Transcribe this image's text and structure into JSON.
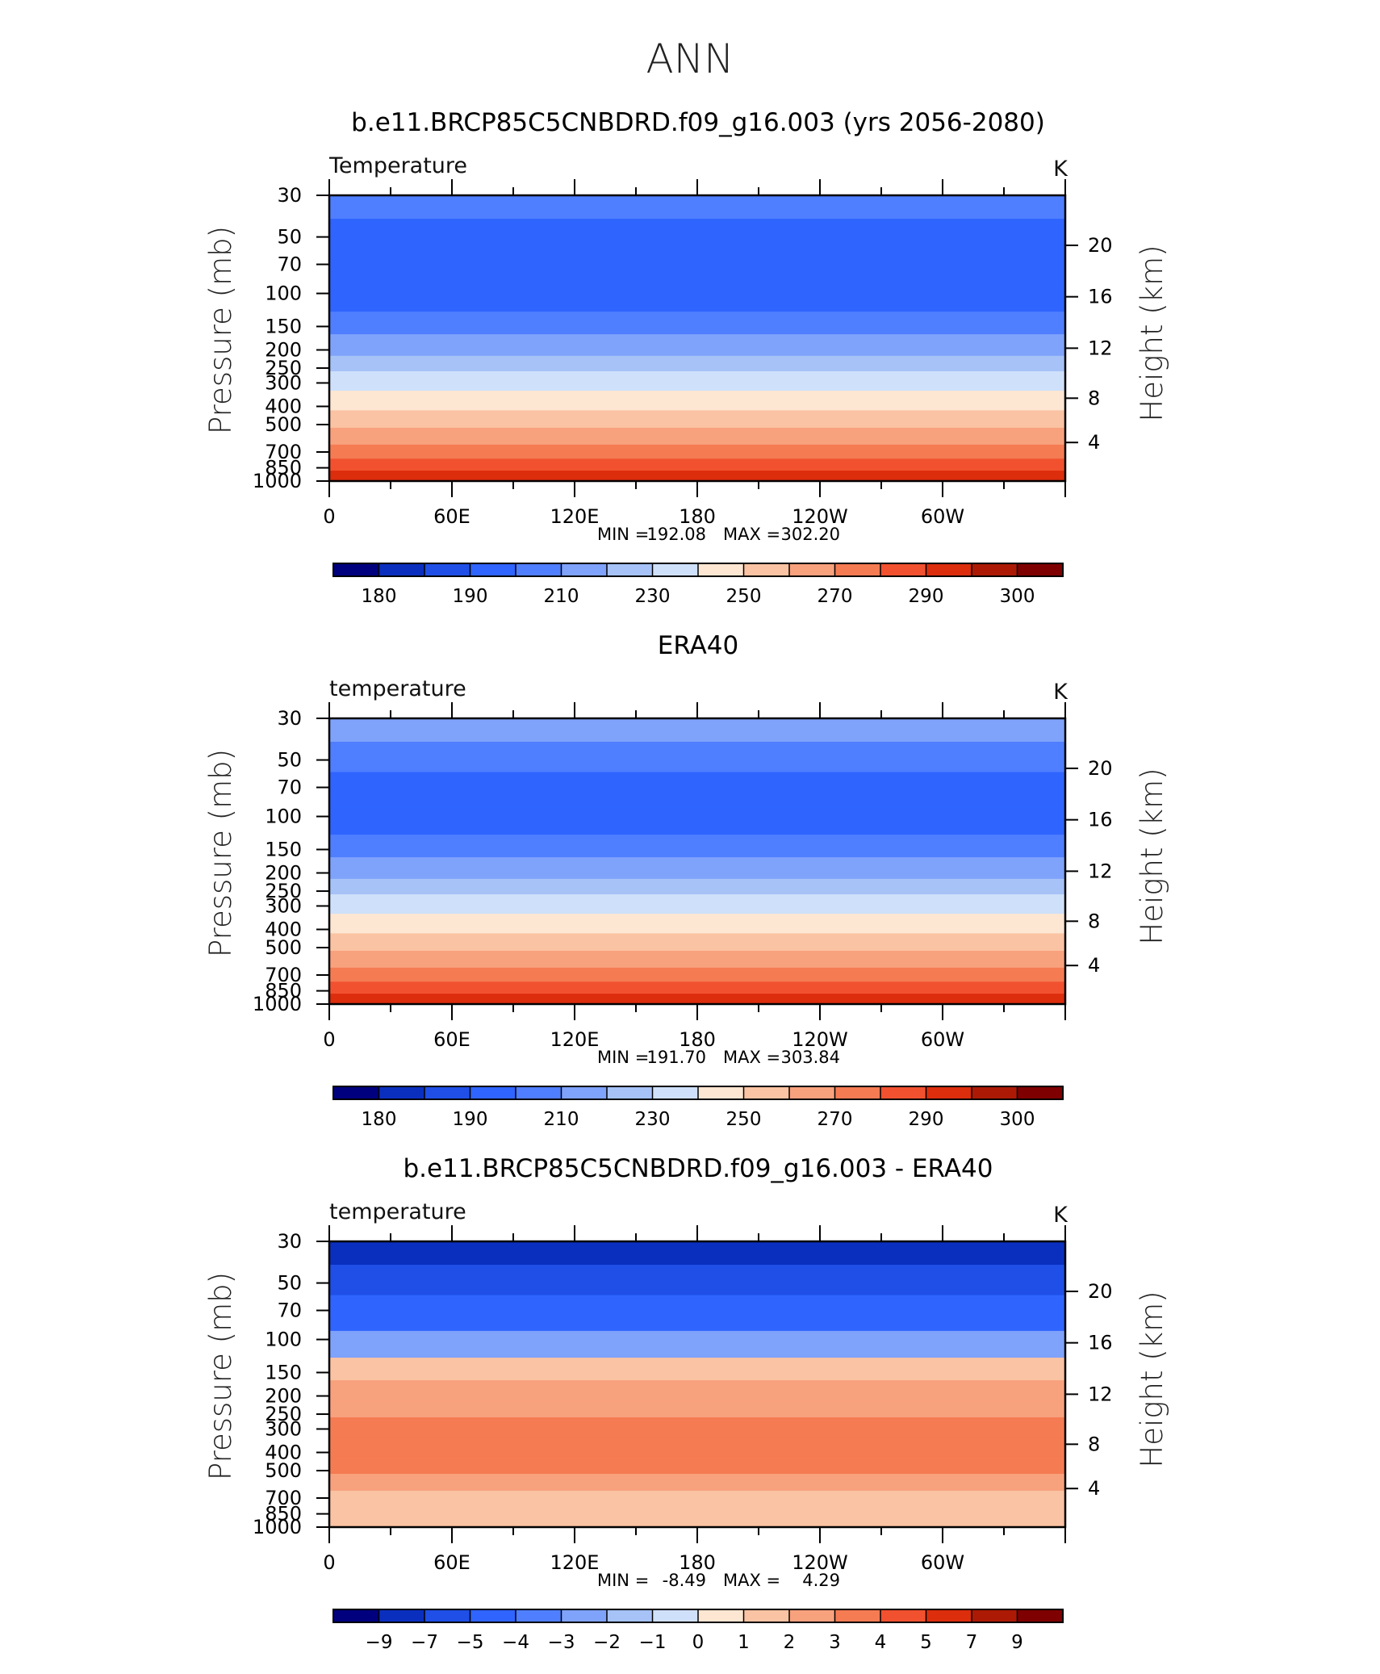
{
  "figure": {
    "main_title": "ANN"
  },
  "chart_data": [
    {
      "type": "heatmap",
      "title": "b.e11.BRCP85C5CNBDRD.f09_g16.003 (yrs 2056-2080)",
      "left_label": "Temperature",
      "units": "K",
      "ylabel": "Pressure (mb)",
      "ylabel_right": "Height (km)",
      "x_ticks": [
        "0",
        "60E",
        "120E",
        "180",
        "120W",
        "60W"
      ],
      "y_ticks": [
        "30",
        "50",
        "70",
        "100",
        "150",
        "200",
        "250",
        "300",
        "400",
        "500",
        "700",
        "850",
        "1000"
      ],
      "y_ticks_right": [
        "20",
        "16",
        "12",
        "8",
        "4"
      ],
      "min_label": "MIN =",
      "min": "192.08",
      "max_label": "MAX =",
      "max": "302.20",
      "colorbar_labels": [
        "180",
        "190",
        "210",
        "230",
        "250",
        "270",
        "290",
        "300"
      ],
      "colors": [
        "#00007f",
        "#0a2fbf",
        "#1f4fe6",
        "#2f64ff",
        "#4f7eff",
        "#7fa2fb",
        "#a6c2f7",
        "#cfe0fa",
        "#fde6d2",
        "#fac3a3",
        "#f8a17d",
        "#f57b53",
        "#f1512f",
        "#dc2d0d",
        "#ac1a05",
        "#7f0000"
      ],
      "profile_levels": [
        4,
        3,
        3,
        3,
        4,
        5,
        6,
        7,
        8,
        9,
        10,
        11,
        12,
        13
      ]
    },
    {
      "type": "heatmap",
      "title": "ERA40",
      "left_label": "temperature",
      "units": "K",
      "ylabel": "Pressure (mb)",
      "ylabel_right": "Height (km)",
      "x_ticks": [
        "0",
        "60E",
        "120E",
        "180",
        "120W",
        "60W"
      ],
      "y_ticks": [
        "30",
        "50",
        "70",
        "100",
        "150",
        "200",
        "250",
        "300",
        "400",
        "500",
        "700",
        "850",
        "1000"
      ],
      "y_ticks_right": [
        "20",
        "16",
        "12",
        "8",
        "4"
      ],
      "min_label": "MIN =",
      "min": "191.70",
      "max_label": "MAX =",
      "max": "303.84",
      "colorbar_labels": [
        "180",
        "190",
        "210",
        "230",
        "250",
        "270",
        "290",
        "300"
      ],
      "colors": [
        "#00007f",
        "#0a2fbf",
        "#1f4fe6",
        "#2f64ff",
        "#4f7eff",
        "#7fa2fb",
        "#a6c2f7",
        "#cfe0fa",
        "#fde6d2",
        "#fac3a3",
        "#f8a17d",
        "#f57b53",
        "#f1512f",
        "#dc2d0d",
        "#ac1a05",
        "#7f0000"
      ],
      "profile_levels": [
        5,
        4,
        3,
        3,
        4,
        5,
        6,
        7,
        8,
        9,
        10,
        11,
        12,
        13
      ]
    },
    {
      "type": "heatmap",
      "title": "b.e11.BRCP85C5CNBDRD.f09_g16.003 - ERA40",
      "left_label": "temperature",
      "units": "K",
      "ylabel": "Pressure (mb)",
      "ylabel_right": "Height (km)",
      "x_ticks": [
        "0",
        "60E",
        "120E",
        "180",
        "120W",
        "60W"
      ],
      "y_ticks": [
        "30",
        "50",
        "70",
        "100",
        "150",
        "200",
        "250",
        "300",
        "400",
        "500",
        "700",
        "850",
        "1000"
      ],
      "y_ticks_right": [
        "20",
        "16",
        "12",
        "8",
        "4"
      ],
      "min_label": "MIN =",
      "min": "-8.49",
      "max_label": "MAX =",
      "max": "4.29",
      "colorbar_labels": [
        "−9",
        "−7",
        "−5",
        "−4",
        "−3",
        "−2",
        "−1",
        "0",
        "1",
        "2",
        "3",
        "4",
        "5",
        "7",
        "9"
      ],
      "colors": [
        "#00007f",
        "#0a2fbf",
        "#1f4fe6",
        "#2f64ff",
        "#4f7eff",
        "#7fa2fb",
        "#a6c2f7",
        "#cfe0fa",
        "#fde6d2",
        "#fac3a3",
        "#f8a17d",
        "#f57b53",
        "#f1512f",
        "#dc2d0d",
        "#ac1a05",
        "#7f0000"
      ],
      "profile_levels": [
        1,
        2,
        3,
        5,
        9,
        10,
        10,
        11,
        11,
        11,
        10,
        9,
        9,
        9
      ]
    }
  ]
}
